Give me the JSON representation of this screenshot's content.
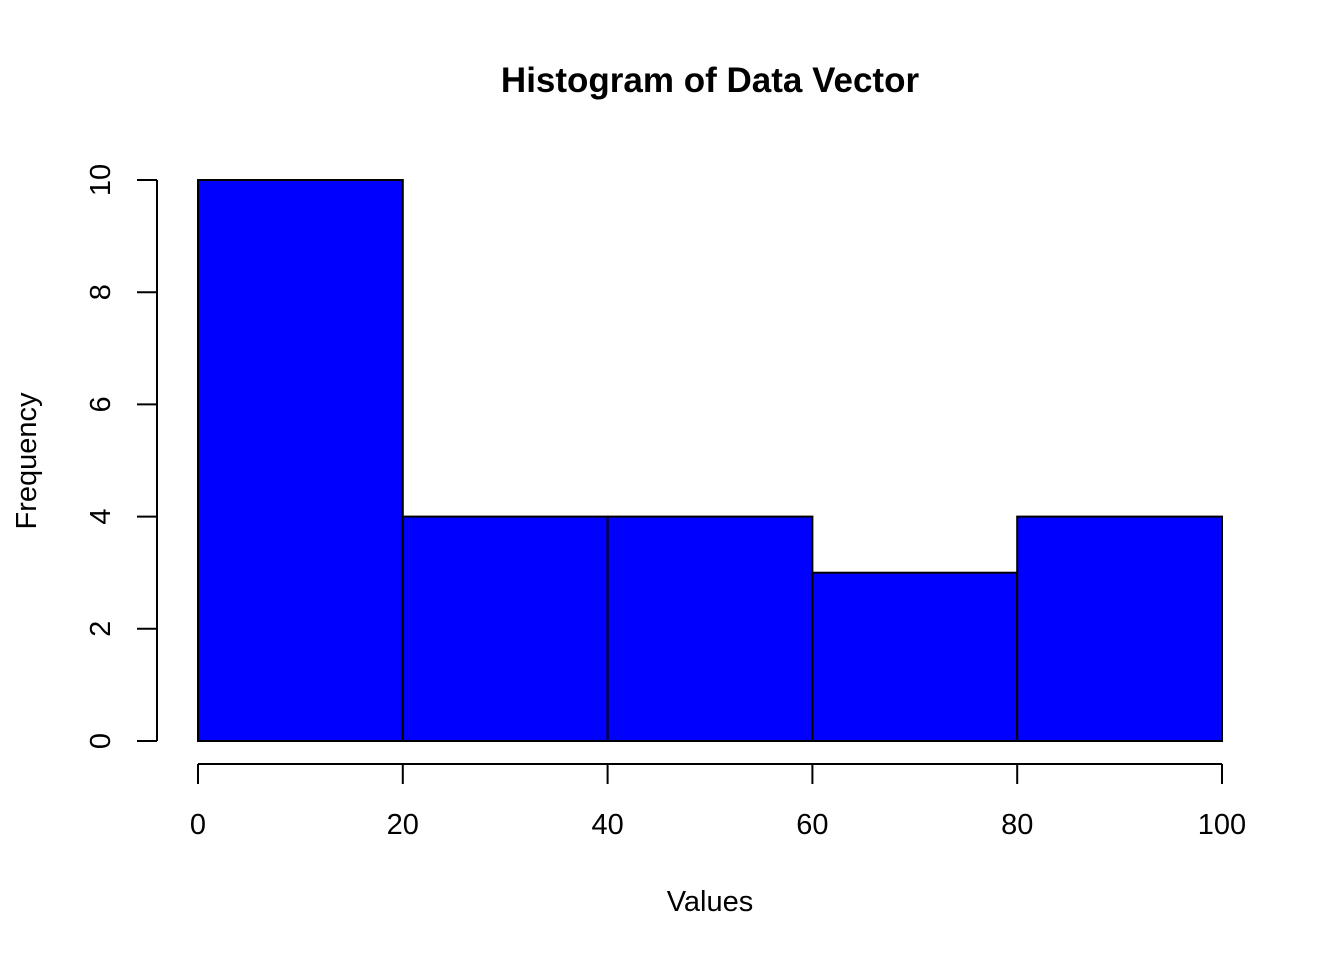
{
  "chart_data": {
    "type": "histogram",
    "title": "Histogram of Data Vector",
    "xlabel": "Values",
    "ylabel": "Frequency",
    "bins": [
      {
        "from": 0,
        "to": 20,
        "count": 10
      },
      {
        "from": 20,
        "to": 40,
        "count": 4
      },
      {
        "from": 40,
        "to": 60,
        "count": 4
      },
      {
        "from": 60,
        "to": 80,
        "count": 3
      },
      {
        "from": 80,
        "to": 100,
        "count": 4
      }
    ],
    "xlim": [
      0,
      100
    ],
    "ylim": [
      0,
      10
    ],
    "x_ticks": [
      0,
      20,
      40,
      60,
      80,
      100
    ],
    "x_tick_labels": [
      "0",
      "20",
      "40",
      "60",
      "80",
      "100"
    ],
    "y_ticks": [
      0,
      2,
      4,
      6,
      8,
      10
    ],
    "y_tick_labels": [
      "0",
      "2",
      "4",
      "6",
      "8",
      "10"
    ],
    "bar_color": "#0000ff",
    "bar_border_color": "#000000",
    "grid": false,
    "legend": "none"
  }
}
